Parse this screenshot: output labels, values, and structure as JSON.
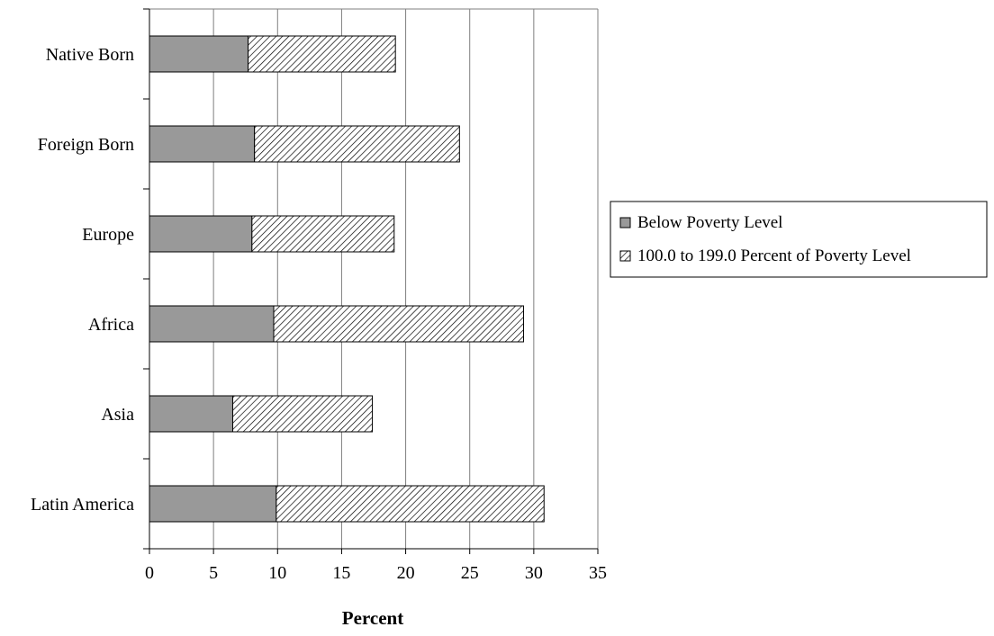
{
  "chart_data": {
    "type": "bar",
    "orientation": "horizontal",
    "stacked": true,
    "categories": [
      "Native Born",
      "Foreign Born",
      "Europe",
      "Africa",
      "Asia",
      "Latin America"
    ],
    "series": [
      {
        "name": "Below Poverty Level",
        "values": [
          7.7,
          8.2,
          8.0,
          9.7,
          6.5,
          9.9
        ],
        "color": "#999999",
        "pattern": "solid"
      },
      {
        "name": "100.0 to 199.0 Percent of Poverty Level",
        "values": [
          11.5,
          16.0,
          11.1,
          19.5,
          10.9,
          20.9
        ],
        "color": "#ffffff",
        "pattern": "diagonal-hatch"
      }
    ],
    "title": "",
    "xlabel": "Percent",
    "ylabel": "",
    "xlim": [
      0,
      35
    ],
    "xticks": [
      0,
      5,
      10,
      15,
      20,
      25,
      30,
      35
    ],
    "grid": "vertical",
    "legend_position": "right"
  }
}
